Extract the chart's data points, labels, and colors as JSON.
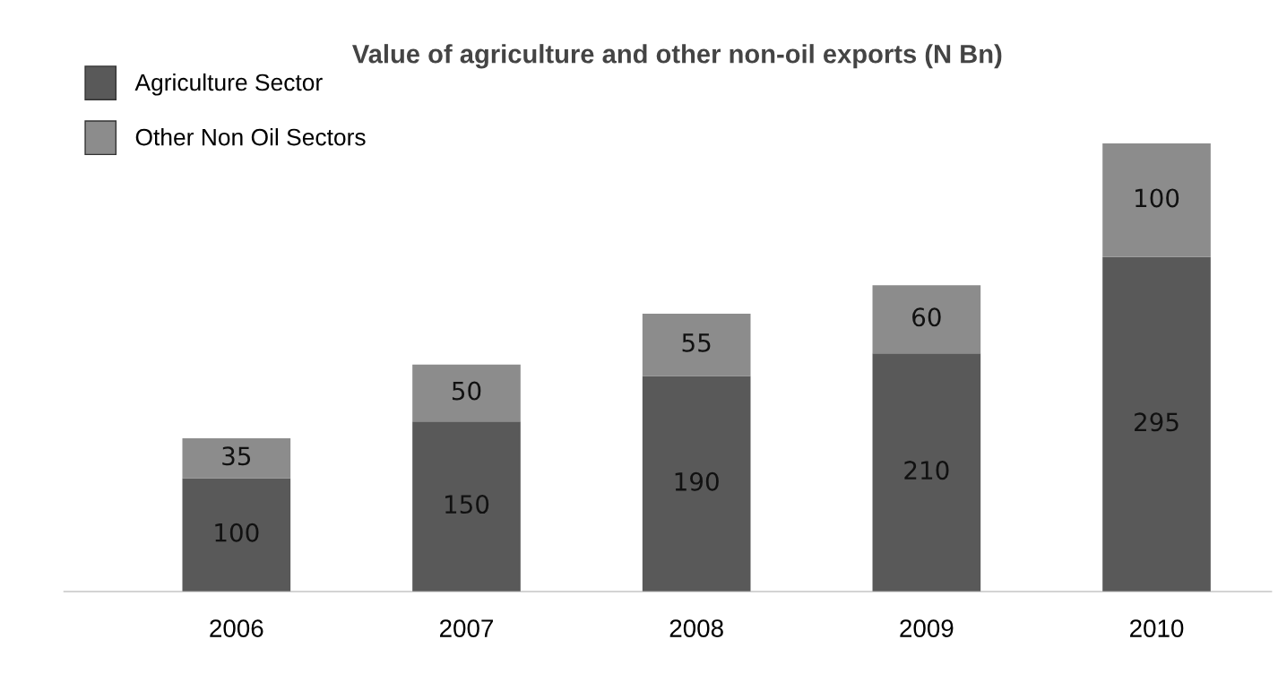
{
  "chart_data": {
    "type": "bar",
    "title": "Value of agriculture and other non-oil exports (N Bn)",
    "categories": [
      "2006",
      "2007",
      "2008",
      "2009",
      "2010"
    ],
    "stacked": true,
    "data_labels": true,
    "legend": "top left",
    "series": [
      {
        "name": "Agriculture Sector",
        "color": "#595959",
        "values": [
          100,
          150,
          190,
          210,
          295
        ]
      },
      {
        "name": "Other Non Oil Sectors",
        "color": "#8c8c8c",
        "values": [
          35,
          50,
          55,
          60,
          100
        ]
      }
    ]
  }
}
